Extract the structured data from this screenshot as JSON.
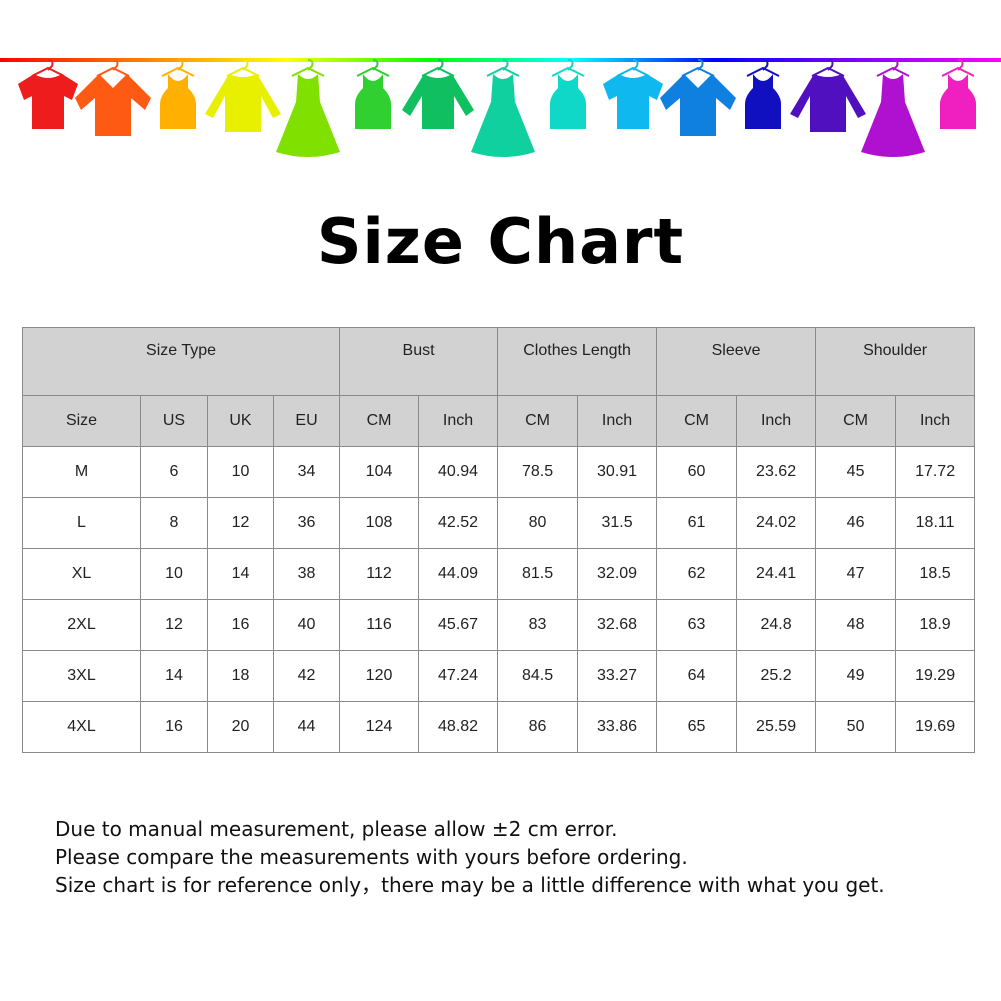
{
  "banner": {
    "line_colors": [
      "#ff0000",
      "#ff8000",
      "#ffff00",
      "#00ff00",
      "#00ffff",
      "#0000ff",
      "#8000ff",
      "#ff00ff"
    ],
    "garments": [
      {
        "icon": "tshirt-icon",
        "color": "#ee1c1c"
      },
      {
        "icon": "shirt-icon",
        "color": "#ff5a14"
      },
      {
        "icon": "tank-top-icon",
        "color": "#ffb000"
      },
      {
        "icon": "sweater-icon",
        "color": "#e8f000"
      },
      {
        "icon": "dress-icon",
        "color": "#80e000"
      },
      {
        "icon": "tank-top-icon",
        "color": "#30d030"
      },
      {
        "icon": "long-sleeve-icon",
        "color": "#10c060"
      },
      {
        "icon": "dress-icon",
        "color": "#10d0a0"
      },
      {
        "icon": "tank-top-icon",
        "color": "#10d8c8"
      },
      {
        "icon": "tshirt-icon",
        "color": "#10b8f0"
      },
      {
        "icon": "shirt-icon",
        "color": "#1080e0"
      },
      {
        "icon": "tank-top-icon",
        "color": "#1010c0"
      },
      {
        "icon": "sweater-icon",
        "color": "#5010c0"
      },
      {
        "icon": "dress-icon",
        "color": "#b010d0"
      },
      {
        "icon": "tank-top-icon",
        "color": "#f020c0"
      }
    ]
  },
  "title": "Size Chart",
  "table": {
    "group_headers": [
      "Size Type",
      "Bust",
      "Clothes Length",
      "Sleeve",
      "Shoulder"
    ],
    "sub_headers": [
      "Size",
      "US",
      "UK",
      "EU",
      "CM",
      "Inch",
      "CM",
      "Inch",
      "CM",
      "Inch",
      "CM",
      "Inch"
    ],
    "rows": [
      [
        "M",
        "6",
        "10",
        "34",
        "104",
        "40.94",
        "78.5",
        "30.91",
        "60",
        "23.62",
        "45",
        "17.72"
      ],
      [
        "L",
        "8",
        "12",
        "36",
        "108",
        "42.52",
        "80",
        "31.5",
        "61",
        "24.02",
        "46",
        "18.11"
      ],
      [
        "XL",
        "10",
        "14",
        "38",
        "112",
        "44.09",
        "81.5",
        "32.09",
        "62",
        "24.41",
        "47",
        "18.5"
      ],
      [
        "2XL",
        "12",
        "16",
        "40",
        "116",
        "45.67",
        "83",
        "32.68",
        "63",
        "24.8",
        "48",
        "18.9"
      ],
      [
        "3XL",
        "14",
        "18",
        "42",
        "120",
        "47.24",
        "84.5",
        "33.27",
        "64",
        "25.2",
        "49",
        "19.29"
      ],
      [
        "4XL",
        "16",
        "20",
        "44",
        "124",
        "48.82",
        "86",
        "33.86",
        "65",
        "25.59",
        "50",
        "19.69"
      ]
    ]
  },
  "notes": [
    "Due to manual measurement, please allow ±2 cm error.",
    "Please compare the measurements with yours before ordering.",
    "Size chart is for reference only，there may be a little difference with what you get."
  ]
}
